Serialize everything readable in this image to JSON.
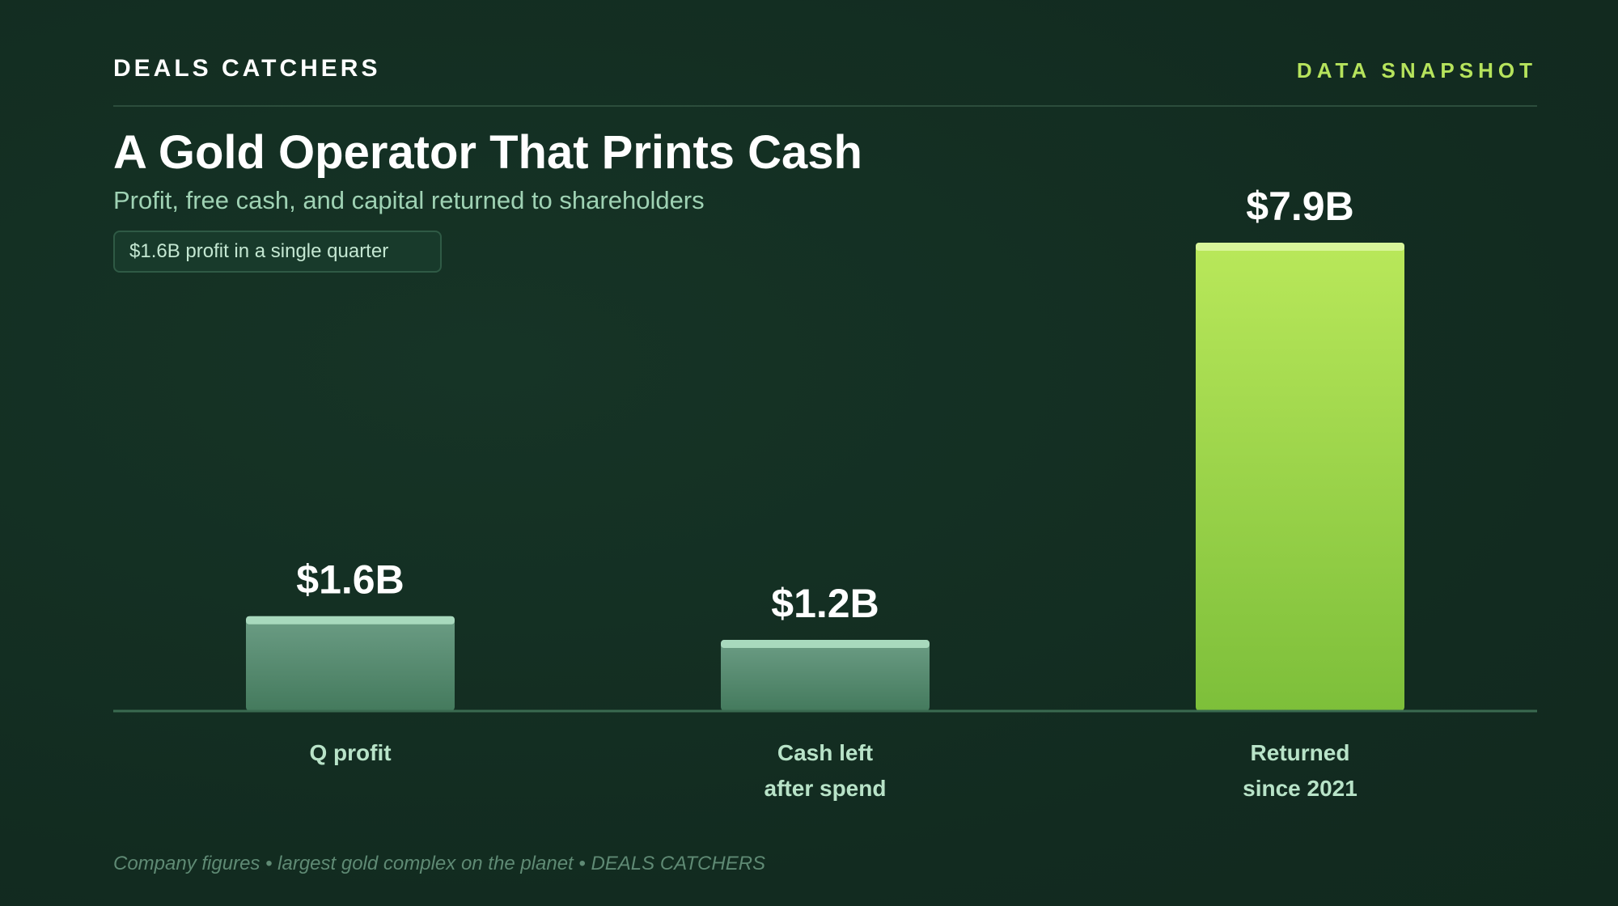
{
  "header": {
    "brand": "DEALS CATCHERS",
    "tag": "DATA SNAPSHOT"
  },
  "title": "A Gold Operator That Prints Cash",
  "subtitle": "Profit, free cash, and capital returned to shareholders",
  "callout": "$1.6B profit in a single quarter",
  "footer": "Company figures • largest gold complex on the planet • DEALS CATCHERS",
  "colors": {
    "background": "#142d22",
    "accent": "#b6e35c",
    "muted_bar_top": "#6c9d85",
    "muted_bar_bottom": "#447a5d",
    "highlight_bar_top": "#b9e85a",
    "highlight_bar_bottom": "#7dbf3a"
  },
  "chart_data": {
    "type": "bar",
    "categories": [
      [
        "Q profit"
      ],
      [
        "Cash left",
        "after spend"
      ],
      [
        "Returned",
        "since 2021"
      ]
    ],
    "values": [
      1.6,
      1.2,
      7.9
    ],
    "value_labels": [
      "$1.6B",
      "$1.2B",
      "$7.9B"
    ],
    "highlight": [
      false,
      false,
      true
    ],
    "unit": "$B",
    "ylim": [
      0,
      7.9
    ],
    "grid": false,
    "legend": "none"
  }
}
